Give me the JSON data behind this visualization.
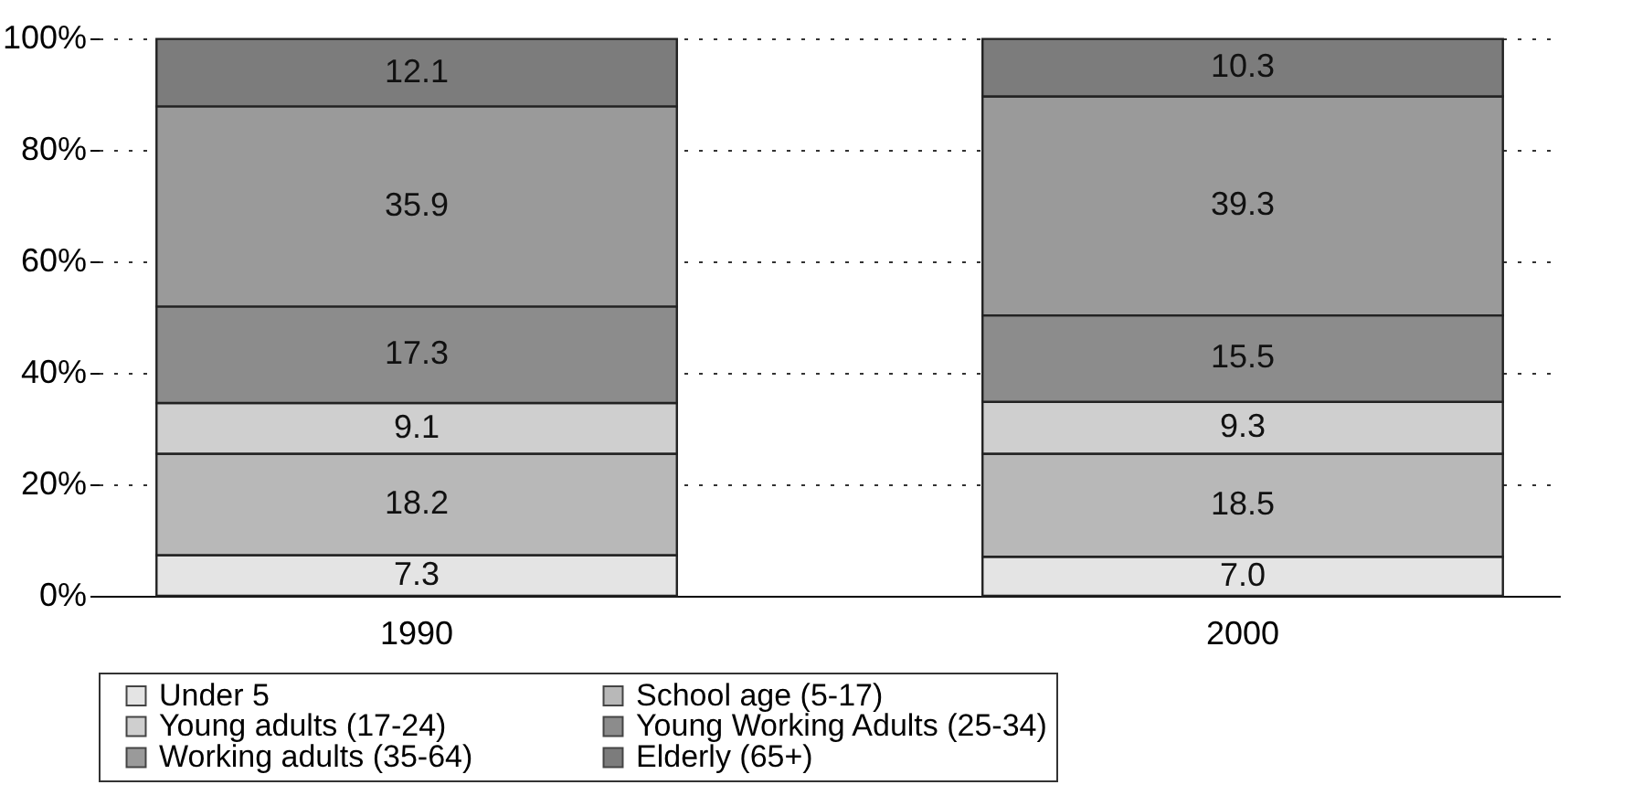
{
  "chart_data": {
    "type": "bar",
    "stacked": true,
    "categories": [
      "1990",
      "2000"
    ],
    "series": [
      {
        "name": "Under 5",
        "color": "#e4e4e4",
        "values": [
          7.3,
          7.0
        ],
        "value_labels": [
          "7.3",
          "7.0"
        ]
      },
      {
        "name": "School age (5-17)",
        "color": "#b8b8b8",
        "values": [
          18.2,
          18.5
        ],
        "value_labels": [
          "18.2",
          "18.5"
        ]
      },
      {
        "name": "Young adults (17-24)",
        "color": "#cfcfcf",
        "values": [
          9.1,
          9.3
        ],
        "value_labels": [
          "9.1",
          "9.3"
        ]
      },
      {
        "name": "Young Working Adults (25-34)",
        "color": "#8c8c8c",
        "values": [
          17.3,
          15.5
        ],
        "value_labels": [
          "17.3",
          "15.5"
        ]
      },
      {
        "name": "Working adults (35-64)",
        "color": "#9a9a9a",
        "values": [
          35.9,
          39.3
        ],
        "value_labels": [
          "35.9",
          "39.3"
        ]
      },
      {
        "name": "Elderly (65+)",
        "color": "#7c7c7c",
        "values": [
          12.1,
          10.3
        ],
        "value_labels": [
          "12.1",
          "10.3"
        ]
      }
    ],
    "ylim": [
      0,
      100
    ],
    "yticks": [
      {
        "value": 0,
        "label": "0%"
      },
      {
        "value": 20,
        "label": "20%"
      },
      {
        "value": 40,
        "label": "40%"
      },
      {
        "value": 60,
        "label": "60%"
      },
      {
        "value": 80,
        "label": "80%"
      },
      {
        "value": 100,
        "label": "100%"
      }
    ],
    "grid": "y",
    "legend": "bottom"
  }
}
